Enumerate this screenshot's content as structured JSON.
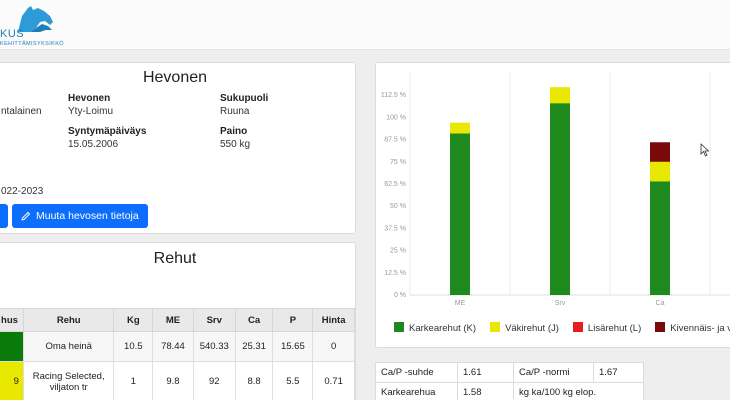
{
  "header": {
    "logo_text": "KUS",
    "logo_sub": "KEHITTÄMISYKSIKKÖ"
  },
  "horse_card": {
    "title": "Hevonen",
    "owner_fragment": "ntalainen",
    "year_fragment": "022-2023",
    "fields": {
      "horse_label": "Hevonen",
      "horse_value": "Yty-Loimu",
      "sex_label": "Sukupuoli",
      "sex_value": "Ruuna",
      "birth_label": "Syntymäpäiväys",
      "birth_value": "15.05.2006",
      "weight_label": "Paino",
      "weight_value": "550 kg"
    },
    "edit_button": "Muuta hevosen tietoja"
  },
  "feed_card": {
    "title": "Rehut",
    "columns": [
      "hus",
      "Rehu",
      "Kg",
      "ME",
      "Srv",
      "Ca",
      "P",
      "Hinta"
    ],
    "rows": [
      {
        "color": "#0a7a0a",
        "prefix": "",
        "name": "Oma heinä",
        "kg": "10.5",
        "me": "78.44",
        "srv": "540.33",
        "ca": "25.31",
        "p": "15.65",
        "hinta": "0"
      },
      {
        "color": "#e8e800",
        "prefix": "9",
        "name": "Racing Selected, viljaton tr",
        "kg": "1",
        "me": "9.8",
        "srv": "92",
        "ca": "8.8",
        "p": "5.5",
        "hinta": "0.71"
      }
    ]
  },
  "chart_data": {
    "type": "bar",
    "stacked": true,
    "categories": [
      "ME",
      "Srv",
      "Ca"
    ],
    "ytick_labels": [
      "0 %",
      "12.5 %",
      "25 %",
      "37.5 %",
      "50 %",
      "62.5 %",
      "75 %",
      "87.5 %",
      "100 %",
      "112.5 %"
    ],
    "ylim": [
      0,
      125
    ],
    "grid": true,
    "legend_placement": "bottom",
    "series": [
      {
        "name": "Karkearehut (K)",
        "color": "#1e8a1e",
        "values": [
          91,
          108,
          64
        ]
      },
      {
        "name": "Väkirehut (J)",
        "color": "#e8e800",
        "values": [
          6,
          9,
          11
        ]
      },
      {
        "name": "Lisärehut (L)",
        "color": "#e81c1c",
        "values": [
          0,
          0,
          0
        ]
      },
      {
        "name": "Kivennäis- ja v",
        "color": "#7a0a0a",
        "values": [
          0,
          0,
          11
        ]
      }
    ]
  },
  "ratios": {
    "rows": [
      {
        "a": "Ca/P -suhde",
        "b": "1.61",
        "c": "Ca/P -normi",
        "d": "1.67"
      },
      {
        "a": "Karkearehua",
        "b": "1.58",
        "c": "kg ka/100 kg elop.",
        "d": ""
      }
    ]
  }
}
